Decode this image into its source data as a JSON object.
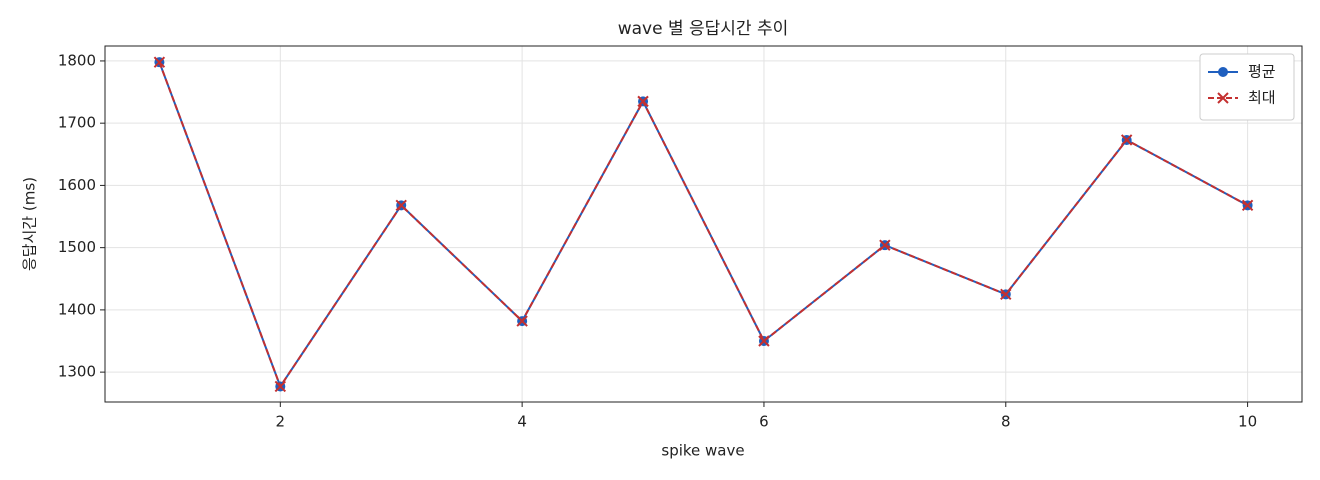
{
  "chart_data": {
    "type": "line",
    "title": "wave 별 응답시간 추이",
    "x_label": "spike wave",
    "y_label": "응답시간 (ms)",
    "x": [
      1,
      2,
      3,
      4,
      5,
      6,
      7,
      8,
      9,
      10
    ],
    "series": [
      {
        "name": "평균",
        "color": "#1f5fbf",
        "marker": "o",
        "linestyle": "solid",
        "values": [
          1798,
          1277,
          1568,
          1382,
          1735,
          1350,
          1504,
          1425,
          1673,
          1568
        ]
      },
      {
        "name": "최대",
        "color": "#c43030",
        "marker": "x",
        "linestyle": "dashed",
        "values": [
          1798,
          1277,
          1568,
          1382,
          1735,
          1350,
          1504,
          1425,
          1673,
          1568
        ]
      }
    ],
    "xlim": [
      0.55,
      10.45
    ],
    "xticks": [
      2,
      4,
      6,
      8,
      10
    ],
    "ylim": [
      1252,
      1824
    ],
    "yticks": [
      1300,
      1400,
      1500,
      1600,
      1700,
      1800
    ],
    "grid": true,
    "legend": "upper right"
  }
}
